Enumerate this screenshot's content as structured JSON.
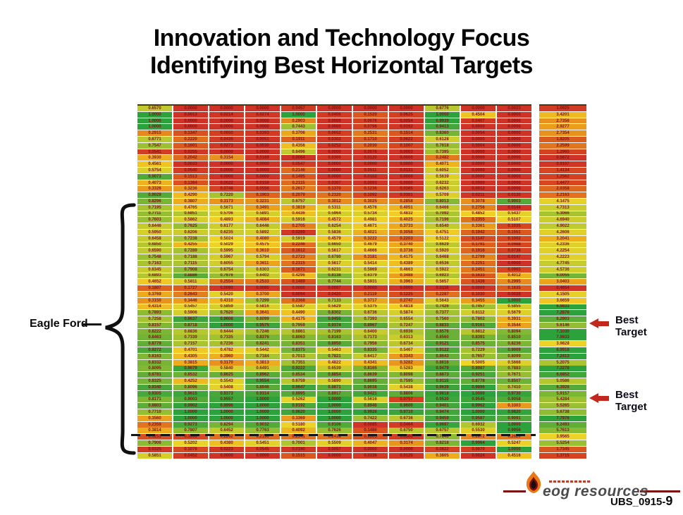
{
  "slide": {
    "title_line1": "Innovation and Technology Focus",
    "title_line2": "Identifying Best Horizontal Targets",
    "footer_code": "UBS_0915-",
    "footer_page": "9",
    "logo_text": "eog resources"
  },
  "labels": {
    "eagle_ford": "Eagle Ford",
    "best_target": {
      "line1": "Best",
      "line2": "Target"
    }
  },
  "colors": {
    "accent_maroon": "#7b1113",
    "arrow_red": "#c2281c",
    "cell_text": "#7c1313",
    "scale_low": "#cf3227",
    "scale_mid": "#f0d428",
    "scale_high": "#2ca23c"
  },
  "chart_data": {
    "type": "heatmap",
    "title": "Identifying Best Horizontal Targets",
    "rows": 57,
    "columns": 11,
    "value_range": [
      0,
      1
    ],
    "side_column_range": [
      0.8,
      7.0
    ],
    "dashed_line_after_row": 53,
    "best_target_rows": [
      36,
      48
    ],
    "region_label": "Eagle Ford",
    "matrix": [
      [
        0.657,
        0.0,
        0.0,
        0.0,
        0.0457,
        0.0,
        0.0,
        0.0,
        0.6776,
        0.0,
        0.0023
      ],
      [
        1.0,
        0.0013,
        0.0214,
        0.0274,
        1.0,
        0.0406,
        0.152,
        0.0625,
        1.0,
        0.4504,
        0.0
      ],
      [
        1.0,
        0.0,
        0.0,
        0.0,
        0.2903,
        0.0,
        0.0676,
        0.0054,
        0.9939,
        0.0407,
        0.0
      ],
      [
        1.0,
        0.0,
        0.0,
        0.0,
        0.7443,
        0.0,
        0.0796,
        0.0162,
        0.9413,
        0.0,
        0.0
      ],
      [
        0.2915,
        0.1347,
        0.065,
        0.0393,
        0.3706,
        0.0652,
        0.2531,
        0.1514,
        0.836,
        0.0054,
        0.0
      ],
      [
        0.6771,
        0.222,
        0.0435,
        0.0051,
        0.1911,
        0.0302,
        0.171,
        0.0622,
        0.6128,
        0.0,
        0.0
      ],
      [
        0.7547,
        0.1601,
        0.0273,
        0.003,
        0.4356,
        0.0252,
        0.203,
        0.1007,
        0.7618,
        0.0004,
        0.0
      ],
      [
        0.0541,
        0.0255,
        0.0,
        0.0,
        0.6496,
        0.0,
        0.0076,
        0.0003,
        0.7395,
        0.0,
        0.0
      ],
      [
        0.393,
        0.2042,
        0.3154,
        0.0169,
        0.0064,
        0.03,
        0.012,
        0.0,
        0.2482,
        0.0,
        0.0
      ],
      [
        0.4561,
        0.0033,
        0.0,
        0.0,
        0.0547,
        0.0,
        0.0,
        0.0,
        0.4071,
        0.0,
        0.0
      ],
      [
        0.5754,
        0.054,
        0.0,
        0.0,
        0.2146,
        0.0,
        0.0511,
        0.0131,
        0.6052,
        0.0,
        0.0
      ],
      [
        0.9073,
        0.1513,
        0.0,
        0.0,
        0.1495,
        0.0,
        0.0102,
        0.0,
        0.5639,
        0.0,
        0.0
      ],
      [
        0.4073,
        0.1364,
        0.0022,
        0.0159,
        0.2115,
        0.0307,
        0.0093,
        0.0,
        0.6232,
        0.0,
        0.0
      ],
      [
        0.3326,
        0.3236,
        0.0748,
        0.0556,
        0.2617,
        0.137,
        0.1236,
        0.0365,
        0.6263,
        0.0012,
        0.0
      ],
      [
        0.9029,
        0.429,
        0.722,
        0.1903,
        0.2079,
        0.232,
        0.1092,
        0.0301,
        0.5709,
        0.0211,
        0.013
      ],
      [
        0.8296,
        0.3807,
        0.3173,
        0.3231,
        0.6757,
        0.3012,
        0.3025,
        0.2858,
        0.8013,
        0.3078,
        0.9003
      ],
      [
        0.7195,
        0.4765,
        0.5671,
        0.3491,
        0.3819,
        0.5311,
        0.4576,
        0.4051,
        0.6466,
        0.2756,
        0.0144
      ],
      [
        0.7711,
        0.6851,
        0.5706,
        0.5891,
        0.4436,
        0.5964,
        0.5734,
        0.4832,
        0.7092,
        0.4852,
        0.5437
      ],
      [
        0.7603,
        0.5862,
        0.4893,
        0.4084,
        0.5916,
        0.4572,
        0.4981,
        0.4025,
        0.7196,
        0.2355,
        0.5107
      ],
      [
        0.6446,
        0.7625,
        0.6177,
        0.6446,
        0.2705,
        0.6254,
        0.4671,
        0.3733,
        0.654,
        0.3361,
        0.1035
      ],
      [
        0.595,
        0.6206,
        0.6235,
        0.5892,
        0.0289,
        0.5836,
        0.4021,
        0.3058,
        0.4751,
        0.1942,
        0.1551
      ],
      [
        0.6458,
        0.7238,
        0.5024,
        0.408,
        0.5919,
        0.4579,
        0.3222,
        0.2203,
        0.5122,
        0.1147,
        0.1002
      ],
      [
        0.685,
        0.4255,
        0.5029,
        0.4575,
        0.2246,
        0.665,
        0.4679,
        0.374,
        0.6629,
        0.1791,
        0.0988
      ],
      [
        0.659,
        0.7289,
        0.5995,
        0.361,
        0.1612,
        0.5617,
        0.4666,
        0.3736,
        0.592,
        0.1916,
        0.0738
      ],
      [
        0.7548,
        0.7188,
        0.5967,
        0.5794,
        0.2723,
        0.678,
        0.3181,
        0.4175,
        0.6468,
        0.2799,
        0.0147
      ],
      [
        0.7163,
        0.7115,
        0.6055,
        0.3611,
        0.2315,
        0.5617,
        0.5414,
        0.4389,
        0.6536,
        0.2251,
        0.0
      ],
      [
        0.6345,
        0.7908,
        0.6754,
        0.6303,
        0.1671,
        0.6231,
        0.5969,
        0.4663,
        0.5922,
        0.2451,
        0.0965
      ],
      [
        0.6893,
        0.8886,
        0.7676,
        0.6402,
        0.4296,
        0.8138,
        0.6379,
        0.3488,
        0.6923,
        0.1633,
        0.4012
      ],
      [
        0.4652,
        0.5811,
        0.2554,
        0.2533,
        0.1489,
        0.7744,
        0.5931,
        0.3963,
        0.5657,
        0.1436,
        0.2995
      ],
      [
        0.1807,
        0.1727,
        0.009,
        0.0085,
        0.0,
        0.0007,
        0.0,
        0.0,
        0.0116,
        0.0,
        0.1635
      ],
      [
        0.3769,
        0.2643,
        0.542,
        0.37,
        0.0094,
        0.042,
        0.2119,
        0.1225,
        0.2287,
        0.103,
        0.0028
      ],
      [
        0.315,
        0.3446,
        0.431,
        0.7299,
        0.2368,
        0.7133,
        0.3717,
        0.2747,
        0.5643,
        0.3455,
        1.0
      ],
      [
        0.4314,
        0.5457,
        0.5859,
        0.5816,
        0.5587,
        0.5629,
        0.5375,
        0.4818,
        0.7426,
        0.7457,
        0.5855
      ],
      [
        0.7893,
        0.5906,
        0.762,
        0.3641,
        0.449,
        0.8302,
        0.6736,
        0.5874,
        0.7377,
        0.6112,
        0.5679
      ],
      [
        0.7258,
        0.9637,
        0.9608,
        0.8099,
        0.4175,
        0.9455,
        0.7393,
        0.6554,
        0.756,
        0.7802,
        0.3931
      ],
      [
        0.8157,
        0.8718,
        1.0,
        0.9575,
        0.7959,
        0.9374,
        0.8967,
        0.7247,
        0.8833,
        0.9161,
        0.3544
      ],
      [
        0.8222,
        0.6836,
        0.6444,
        0.7246,
        0.6861,
        0.7199,
        0.64,
        0.6936,
        0.8576,
        0.6812,
        0.8094
      ],
      [
        0.8463,
        0.7339,
        0.7335,
        0.8376,
        0.8063,
        0.8163,
        0.7173,
        0.6313,
        0.856,
        0.8391,
        0.851
      ],
      [
        0.8779,
        0.7157,
        0.7236,
        0.8241,
        0.8351,
        0.895,
        0.7956,
        0.6734,
        0.9121,
        0.8575,
        0.8236
      ],
      [
        0.9272,
        0.4701,
        0.4782,
        0.5442,
        0.8375,
        0.5463,
        0.8335,
        0.5467,
        0.9122,
        0.7229,
        0.9009
      ],
      [
        0.8163,
        0.4305,
        0.396,
        0.7184,
        0.7013,
        0.7821,
        0.6417,
        0.3343,
        0.8643,
        0.7657,
        0.8099
      ],
      [
        0.8332,
        0.3815,
        0.317,
        0.3813,
        0.7351,
        0.4822,
        0.4341,
        0.3282,
        0.8616,
        0.5005,
        0.5666
      ],
      [
        0.8095,
        0.9679,
        0.584,
        0.6491,
        0.9222,
        0.6539,
        0.8165,
        0.5283,
        0.9479,
        0.8987,
        0.7883
      ],
      [
        0.8781,
        0.8532,
        0.8625,
        0.8962,
        0.8534,
        0.8854,
        0.8639,
        0.8098,
        0.8873,
        0.9251,
        0.7671
      ],
      [
        0.8325,
        0.4252,
        0.5543,
        0.9554,
        0.6759,
        0.589,
        0.8695,
        0.7595,
        0.9115,
        0.8778,
        0.8507
      ],
      [
        0.934,
        0.8096,
        0.5408,
        0.8946,
        0.9647,
        0.8871,
        0.9038,
        0.5438,
        0.9639,
        0.9896,
        0.741
      ],
      [
        0.9305,
        0.9615,
        0.9373,
        0.9314,
        0.8995,
        0.8917,
        0.9421,
        0.8806,
        0.9818,
        1.0,
        0.973
      ],
      [
        0.8171,
        0.9003,
        0.9557,
        1.0,
        0.5262,
        1.0,
        0.5616,
        0.0757,
        0.953,
        0.9545,
        0.9058
      ],
      [
        0.8803,
        0.9902,
        0.9996,
        1.0,
        0.9192,
        1.0,
        0.8946,
        0.96,
        0.9401,
        0.9962,
        0.3303
      ],
      [
        0.771,
        1.0,
        1.0,
        1.0,
        0.962,
        1.0,
        0.9926,
        0.971,
        0.9474,
        1.0,
        0.982
      ],
      [
        0.356,
        1.0,
        1.0,
        1.0,
        0.3369,
        1.0,
        0.7422,
        0.6736,
        0.9459,
        0.9587,
        0.9091
      ],
      [
        0.2359,
        0.9273,
        0.8294,
        0.9032,
        0.518,
        0.9106,
        0.0085,
        0.0464,
        0.9697,
        0.6932,
        1.0
      ],
      [
        0.3814,
        0.7807,
        0.6452,
        0.7763,
        0.4092,
        0.7626,
        0.1486,
        0.675,
        0.6757,
        0.553,
        0.9956
      ],
      [
        0.1251,
        0.1066,
        0.2262,
        0.213,
        0.2341,
        0.2418,
        0.1305,
        0.056,
        0.7846,
        0.2872,
        0.262
      ],
      [
        0.7906,
        0.5202,
        0.438,
        0.5451,
        0.7001,
        0.5509,
        0.4047,
        0.3174,
        0.8218,
        0.9964,
        0.5247
      ],
      [
        0.0325,
        0.1076,
        0.0223,
        0.0545,
        0.019,
        0.0057,
        0.0,
        0.0,
        0.0822,
        0.067,
        1.0
      ],
      [
        0.5851,
        0.0452,
        0.0,
        0.0,
        0.1515,
        0.0,
        0.0336,
        0.0125,
        0.3805,
        0.0024,
        0.4516
      ]
    ],
    "side_column": [
      1.0925,
      3.4201,
      2.7356,
      2.9277,
      2.7354,
      1.8205,
      2.2599,
      1.2965,
      0.5872,
      0.9107,
      1.4134,
      1.2562,
      1.4477,
      2.0358,
      2.2163,
      4.1475,
      4.7313,
      5.3066,
      4.694,
      4.9022,
      4.2606,
      3.2041,
      4.2336,
      4.2254,
      4.2223,
      4.7745,
      4.5736,
      6.0055,
      3.0403,
      0.4654,
      4.1505,
      3.6659,
      6.9833,
      7.2876,
      6.2903,
      5.6146,
      7.103,
      7.9833,
      3.9828,
      6.9918,
      7.2413,
      5.2075,
      7.2278,
      6.6852,
      5.0586,
      6.3926,
      5.9157,
      5.4284,
      5.5265,
      5.6738,
      7.7976,
      6.2493,
      5.7613,
      3.9565,
      5.5254,
      1.7345,
      1.3715
    ]
  }
}
